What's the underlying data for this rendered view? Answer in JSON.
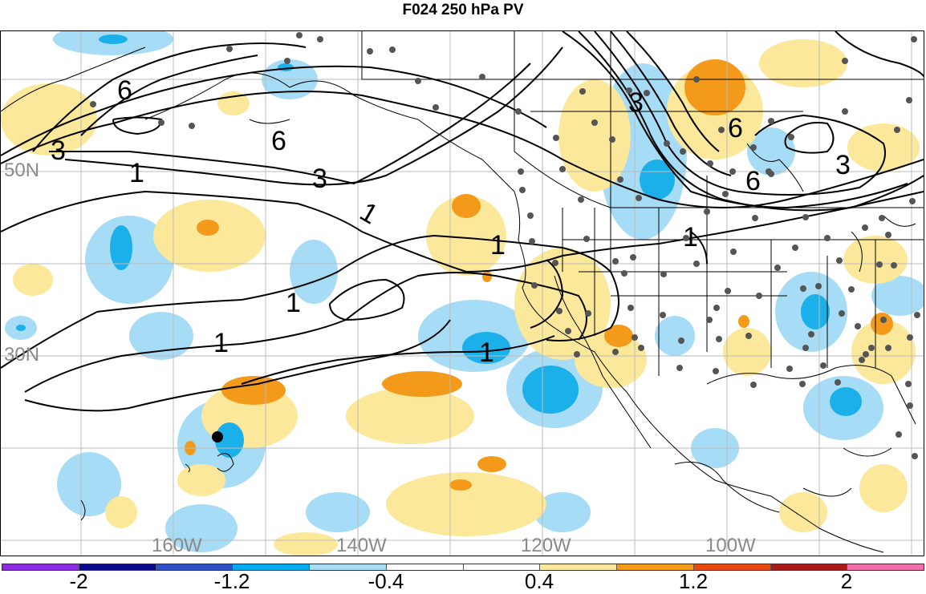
{
  "title": "F024 250 hPa PV",
  "lat_labels": {
    "n50": "50N",
    "n30": "30N"
  },
  "lon_labels": {
    "w160": "160W",
    "w140": "140W",
    "w120": "120W",
    "w100": "100W"
  },
  "contour_labels": {
    "c1a": "1",
    "c1b": "1",
    "c1c": "1",
    "c1d": "1",
    "c1e": "1",
    "c1f": "1",
    "c1g": "1",
    "c3a": "3",
    "c3b": "3",
    "c3c": "3",
    "c3d": "3",
    "c6a": "6",
    "c6b": "6",
    "c6c": "6",
    "c6d": "6"
  },
  "colorbar": {
    "colors": [
      "#8a2be2",
      "#0a0a8c",
      "#3050c8",
      "#00aaee",
      "#a6dcf5",
      "#ffffff",
      "#ffffff",
      "#fce89a",
      "#f49a1a",
      "#e84a10",
      "#a81a1a",
      "#f06eaa"
    ],
    "labels": {
      "l1": "-2",
      "l2": "-1.2",
      "l3": "-0.4",
      "l4": "0.4",
      "l5": "1.2",
      "l6": "2"
    }
  },
  "colors": {
    "light_blue": "#a6dcf5",
    "mid_blue": "#1cb0ea",
    "light_orange": "#fce89a",
    "orange": "#f49a1a",
    "contour": "#000000",
    "station": "#555555",
    "grid": "#bbbbbb"
  }
}
